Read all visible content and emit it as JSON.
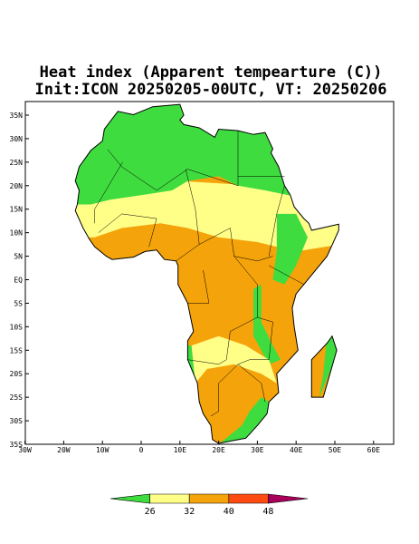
{
  "title": {
    "line1": "Heat index (Apparent tempearture (C))",
    "line2": "Init:ICON 20250205-00UTC, VT: 20250206"
  },
  "map": {
    "lat_labels": [
      "35N",
      "30N",
      "25N",
      "20N",
      "15N",
      "10N",
      "5N",
      "EQ",
      "5S",
      "10S",
      "15S",
      "20S",
      "25S",
      "30S",
      "35S"
    ],
    "lon_labels": [
      "30W",
      "20W",
      "10W",
      "0",
      "10E",
      "20E",
      "30E",
      "40E",
      "50E",
      "60E"
    ]
  },
  "colorbar": {
    "colors": [
      "#3fdc3f",
      "#ffff88",
      "#f5a30a",
      "#ff4a12",
      "#a8005a"
    ],
    "labels": [
      "26",
      "32",
      "40",
      "48"
    ]
  }
}
